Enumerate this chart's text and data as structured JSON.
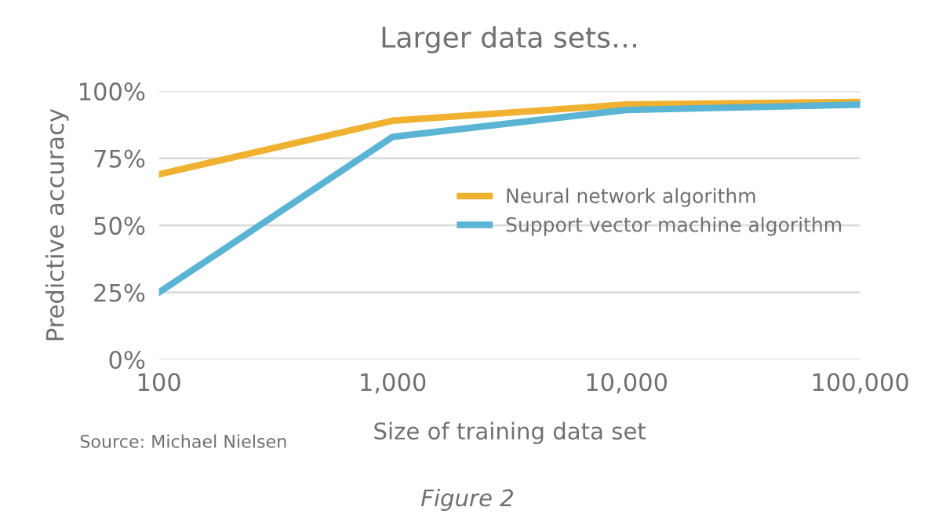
{
  "chart_data": {
    "type": "line",
    "title": "Larger data sets…",
    "xlabel": "Size of training data set",
    "ylabel": "Predictive accuracy",
    "x": [
      100,
      1000,
      10000,
      100000
    ],
    "series": [
      {
        "name": "Neural network algorithm",
        "color": "#f0b030",
        "values": [
          69,
          89,
          95,
          96
        ]
      },
      {
        "name": "Support vector machine algorithm",
        "color": "#5ab4d4",
        "values": [
          25,
          83,
          93,
          95
        ]
      }
    ],
    "log": "x",
    "xlim": [
      100,
      100000
    ],
    "xticks": [
      100,
      {
        "value": 1000,
        "label": "1,000"
      },
      {
        "value": 10000,
        "label": "10,000"
      },
      {
        "value": 100000,
        "label": "100,000"
      }
    ],
    "ylim": [
      0,
      100
    ],
    "yticks": [
      {
        "value": 0,
        "label": "0%"
      },
      {
        "value": 25,
        "label": "25%"
      },
      {
        "value": 50,
        "label": "50%"
      },
      {
        "value": 75,
        "label": "75%"
      },
      {
        "value": 100,
        "label": "100%"
      }
    ],
    "grid": "y",
    "legend": "center right",
    "marker": "none",
    "line_style": "solid",
    "annotations": [
      "Source: Michael Nielsen",
      "Figure 2"
    ]
  }
}
